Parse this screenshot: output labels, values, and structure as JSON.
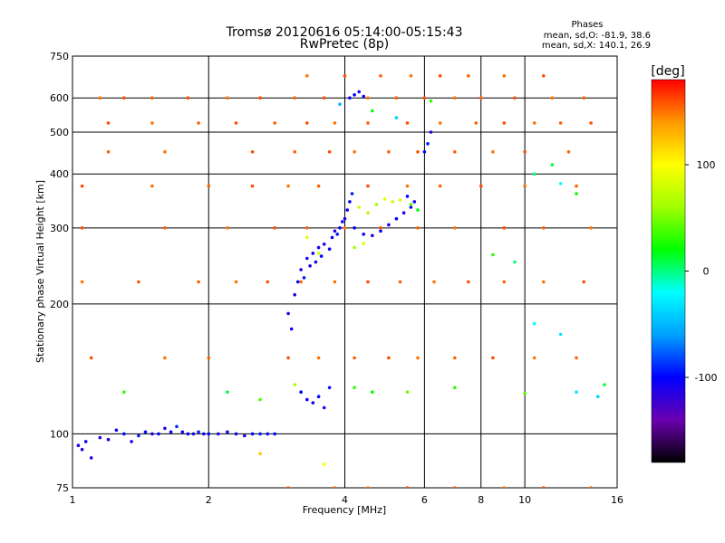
{
  "chart_data": {
    "type": "scatter",
    "title": "Tromsø 20120616 05:14:00-05:15:43",
    "subtitle": "RwPretec (8p)",
    "xlabel": "Frequency [MHz]",
    "ylabel": "Stationary phase Virtual Height [km]",
    "x_scale": "log",
    "y_scale": "log",
    "xlim": [
      1,
      16
    ],
    "ylim": [
      75,
      750
    ],
    "grid": true,
    "x_ticks": [
      1,
      2,
      4,
      6,
      8,
      10,
      16
    ],
    "x_tick_labels": [
      "1",
      "2",
      "4",
      "6",
      "8",
      "10",
      "16"
    ],
    "y_ticks": [
      75,
      100,
      200,
      300,
      400,
      500,
      600,
      750
    ],
    "y_tick_labels": [
      "75",
      "100",
      "200",
      "300",
      "400",
      "500",
      "600",
      "750"
    ],
    "stats": {
      "title": "Phases",
      "line_o": "mean, sd,O: -81.9, 38.6",
      "line_x": "mean, sd,X: 140.1, 26.9"
    },
    "colorbar": {
      "label": "[deg]",
      "min": -180,
      "max": 180,
      "ticks": [
        100,
        0,
        -100
      ],
      "tick_labels": [
        "100",
        "0",
        "-100"
      ],
      "colormap": "rainbow",
      "colors": [
        "#000000",
        "#6a00b0",
        "#0000ff",
        "#00a0ff",
        "#00ffff",
        "#00ff00",
        "#a0ff00",
        "#ffff00",
        "#ff9900",
        "#ff0000"
      ]
    },
    "series": [
      {
        "name": "",
        "description_phase": "negative",
        "points": [
          [
            1.03,
            94,
            -110
          ],
          [
            1.05,
            92,
            -115
          ],
          [
            1.07,
            96,
            -105
          ],
          [
            1.1,
            88,
            -110
          ],
          [
            1.15,
            98,
            -112
          ],
          [
            1.2,
            97,
            -108
          ],
          [
            1.25,
            102,
            -105
          ],
          [
            1.3,
            100,
            -100
          ],
          [
            1.35,
            96,
            -110
          ],
          [
            1.4,
            99,
            -95
          ],
          [
            1.45,
            101,
            -100
          ],
          [
            1.5,
            100,
            -108
          ],
          [
            1.55,
            100,
            -100
          ],
          [
            1.6,
            103,
            -110
          ],
          [
            1.65,
            101,
            -100
          ],
          [
            1.7,
            104,
            -90
          ],
          [
            1.75,
            101,
            -105
          ],
          [
            1.8,
            100,
            -100
          ],
          [
            1.85,
            100,
            -110
          ],
          [
            1.9,
            101,
            -95
          ],
          [
            1.95,
            100,
            -105
          ],
          [
            2.0,
            100,
            -100
          ],
          [
            2.1,
            100,
            -110
          ],
          [
            2.2,
            101,
            -100
          ],
          [
            2.3,
            100,
            -105
          ],
          [
            2.4,
            99,
            -110
          ],
          [
            2.5,
            100,
            -100
          ],
          [
            2.6,
            100,
            -95
          ],
          [
            2.7,
            100,
            -105
          ],
          [
            2.8,
            100,
            -100
          ],
          [
            3.0,
            190,
            -110
          ],
          [
            3.05,
            175,
            -105
          ],
          [
            3.1,
            210,
            -115
          ],
          [
            3.15,
            225,
            -100
          ],
          [
            3.2,
            240,
            -110
          ],
          [
            3.25,
            230,
            -95
          ],
          [
            3.3,
            255,
            -105
          ],
          [
            3.35,
            245,
            -110
          ],
          [
            3.4,
            262,
            -100
          ],
          [
            3.45,
            250,
            -112
          ],
          [
            3.5,
            270,
            -105
          ],
          [
            3.55,
            258,
            -100
          ],
          [
            3.6,
            275,
            -110
          ],
          [
            3.7,
            268,
            -105
          ],
          [
            3.75,
            285,
            -100
          ],
          [
            3.8,
            295,
            -110
          ],
          [
            3.85,
            290,
            -95
          ],
          [
            3.9,
            300,
            -105
          ],
          [
            3.95,
            310,
            -100
          ],
          [
            4.0,
            315,
            -110
          ],
          [
            4.05,
            330,
            -105
          ],
          [
            4.1,
            345,
            -100
          ],
          [
            4.15,
            360,
            -95
          ],
          [
            4.2,
            300,
            -100
          ],
          [
            4.4,
            290,
            -105
          ],
          [
            4.6,
            288,
            -110
          ],
          [
            4.8,
            295,
            -100
          ],
          [
            5.0,
            305,
            -105
          ],
          [
            5.2,
            315,
            -100
          ],
          [
            5.4,
            325,
            -110
          ],
          [
            5.6,
            335,
            -105
          ],
          [
            6.0,
            450,
            -100
          ],
          [
            6.1,
            470,
            -95
          ],
          [
            6.2,
            500,
            -110
          ],
          [
            3.2,
            125,
            -100
          ],
          [
            3.3,
            120,
            -110
          ],
          [
            3.4,
            118,
            -105
          ],
          [
            3.5,
            122,
            -100
          ],
          [
            3.6,
            115,
            -110
          ],
          [
            3.7,
            128,
            -95
          ],
          [
            4.1,
            600,
            -105
          ],
          [
            4.2,
            610,
            -100
          ],
          [
            4.3,
            620,
            -110
          ],
          [
            4.4,
            605,
            -105
          ],
          [
            5.5,
            355,
            -100
          ],
          [
            5.7,
            345,
            -105
          ]
        ]
      },
      {
        "name": "",
        "description_phase": "positive",
        "points": [
          [
            1.15,
            600,
            150
          ],
          [
            1.3,
            600,
            160
          ],
          [
            1.5,
            600,
            155
          ],
          [
            1.8,
            600,
            160
          ],
          [
            2.2,
            600,
            150
          ],
          [
            2.6,
            600,
            160
          ],
          [
            3.1,
            600,
            155
          ],
          [
            3.6,
            600,
            160
          ],
          [
            4.5,
            600,
            150
          ],
          [
            5.2,
            600,
            155
          ],
          [
            6.0,
            600,
            160
          ],
          [
            7.0,
            600,
            150
          ],
          [
            8.0,
            600,
            155
          ],
          [
            9.5,
            600,
            160
          ],
          [
            11.5,
            600,
            150
          ],
          [
            13.5,
            600,
            155
          ],
          [
            1.2,
            525,
            160
          ],
          [
            1.5,
            525,
            150
          ],
          [
            1.9,
            525,
            155
          ],
          [
            2.3,
            525,
            160
          ],
          [
            2.8,
            525,
            155
          ],
          [
            3.3,
            525,
            160
          ],
          [
            3.8,
            525,
            150
          ],
          [
            4.5,
            525,
            155
          ],
          [
            5.5,
            525,
            160
          ],
          [
            6.5,
            525,
            150
          ],
          [
            7.8,
            525,
            155
          ],
          [
            9.0,
            525,
            160
          ],
          [
            10.5,
            525,
            150
          ],
          [
            12.0,
            525,
            155
          ],
          [
            14.0,
            525,
            160
          ],
          [
            1.2,
            450,
            155
          ],
          [
            1.6,
            450,
            150
          ],
          [
            2.5,
            450,
            160
          ],
          [
            3.1,
            450,
            155
          ],
          [
            3.7,
            450,
            160
          ],
          [
            4.2,
            450,
            150
          ],
          [
            5.0,
            450,
            155
          ],
          [
            5.8,
            450,
            160
          ],
          [
            7.0,
            450,
            155
          ],
          [
            8.5,
            450,
            150
          ],
          [
            10.0,
            450,
            160
          ],
          [
            12.5,
            450,
            155
          ],
          [
            1.05,
            375,
            160
          ],
          [
            1.5,
            375,
            150
          ],
          [
            2.0,
            375,
            155
          ],
          [
            2.5,
            375,
            160
          ],
          [
            3.0,
            375,
            150
          ],
          [
            3.5,
            375,
            155
          ],
          [
            4.5,
            375,
            160
          ],
          [
            5.5,
            375,
            150
          ],
          [
            6.5,
            375,
            155
          ],
          [
            8.0,
            375,
            160
          ],
          [
            10.0,
            375,
            150
          ],
          [
            13.0,
            375,
            155
          ],
          [
            1.05,
            300,
            160
          ],
          [
            1.6,
            300,
            155
          ],
          [
            2.2,
            300,
            150
          ],
          [
            2.8,
            300,
            160
          ],
          [
            3.3,
            300,
            155
          ],
          [
            4.0,
            300,
            150
          ],
          [
            4.8,
            300,
            160
          ],
          [
            5.8,
            300,
            155
          ],
          [
            7.0,
            300,
            150
          ],
          [
            9.0,
            300,
            160
          ],
          [
            11.0,
            300,
            155
          ],
          [
            14.0,
            300,
            150
          ],
          [
            1.05,
            225,
            150
          ],
          [
            1.4,
            225,
            160
          ],
          [
            1.9,
            225,
            155
          ],
          [
            2.3,
            225,
            150
          ],
          [
            2.7,
            225,
            160
          ],
          [
            3.2,
            225,
            155
          ],
          [
            3.8,
            225,
            150
          ],
          [
            4.5,
            225,
            160
          ],
          [
            5.3,
            225,
            155
          ],
          [
            6.3,
            225,
            150
          ],
          [
            7.5,
            225,
            160
          ],
          [
            9.0,
            225,
            155
          ],
          [
            11.0,
            225,
            150
          ],
          [
            13.5,
            225,
            160
          ],
          [
            1.1,
            150,
            160
          ],
          [
            1.6,
            150,
            150
          ],
          [
            2.0,
            150,
            155
          ],
          [
            3.0,
            150,
            160
          ],
          [
            3.5,
            150,
            150
          ],
          [
            4.2,
            150,
            155
          ],
          [
            5.0,
            150,
            160
          ],
          [
            5.8,
            150,
            150
          ],
          [
            7.0,
            150,
            155
          ],
          [
            8.5,
            150,
            160
          ],
          [
            10.5,
            150,
            150
          ],
          [
            13.0,
            150,
            155
          ],
          [
            3.0,
            75,
            160
          ],
          [
            3.8,
            75,
            155
          ],
          [
            4.5,
            75,
            150
          ],
          [
            5.5,
            75,
            160
          ],
          [
            7.0,
            75,
            155
          ],
          [
            9.0,
            75,
            150
          ],
          [
            11.0,
            75,
            160
          ],
          [
            14.0,
            75,
            155
          ],
          [
            3.3,
            675,
            150
          ],
          [
            4.0,
            675,
            160
          ],
          [
            4.8,
            675,
            155
          ],
          [
            5.6,
            675,
            150
          ],
          [
            6.5,
            675,
            160
          ],
          [
            7.5,
            675,
            155
          ],
          [
            9.0,
            675,
            150
          ],
          [
            11.0,
            675,
            160
          ]
        ]
      },
      {
        "name": "",
        "description_phase": "mixed",
        "points": [
          [
            4.3,
            335,
            80
          ],
          [
            4.5,
            325,
            70
          ],
          [
            4.7,
            340,
            60
          ],
          [
            4.9,
            350,
            90
          ],
          [
            5.1,
            345,
            75
          ],
          [
            5.3,
            348,
            85
          ],
          [
            5.6,
            340,
            40
          ],
          [
            5.8,
            330,
            20
          ],
          [
            3.3,
            285,
            90
          ],
          [
            3.5,
            262,
            75
          ],
          [
            4.2,
            270,
            60
          ],
          [
            4.4,
            276,
            85
          ],
          [
            2.2,
            125,
            10
          ],
          [
            2.6,
            120,
            40
          ],
          [
            3.1,
            130,
            70
          ],
          [
            4.2,
            128,
            30
          ],
          [
            4.6,
            125,
            20
          ],
          [
            5.5,
            125,
            50
          ],
          [
            7.0,
            128,
            30
          ],
          [
            10.0,
            124,
            40
          ],
          [
            13.0,
            125,
            -30
          ],
          [
            14.5,
            122,
            -40
          ],
          [
            15.0,
            130,
            10
          ],
          [
            10.5,
            400,
            0
          ],
          [
            11.5,
            420,
            10
          ],
          [
            12.0,
            380,
            -20
          ],
          [
            13.0,
            360,
            20
          ],
          [
            8.5,
            260,
            30
          ],
          [
            9.5,
            250,
            0
          ],
          [
            10.5,
            180,
            -20
          ],
          [
            12.0,
            170,
            -30
          ],
          [
            3.9,
            580,
            -50
          ],
          [
            4.6,
            560,
            20
          ],
          [
            5.2,
            540,
            -40
          ],
          [
            6.2,
            590,
            30
          ],
          [
            2.6,
            90,
            120
          ],
          [
            3.6,
            85,
            100
          ],
          [
            1.3,
            125,
            30
          ]
        ]
      }
    ]
  }
}
